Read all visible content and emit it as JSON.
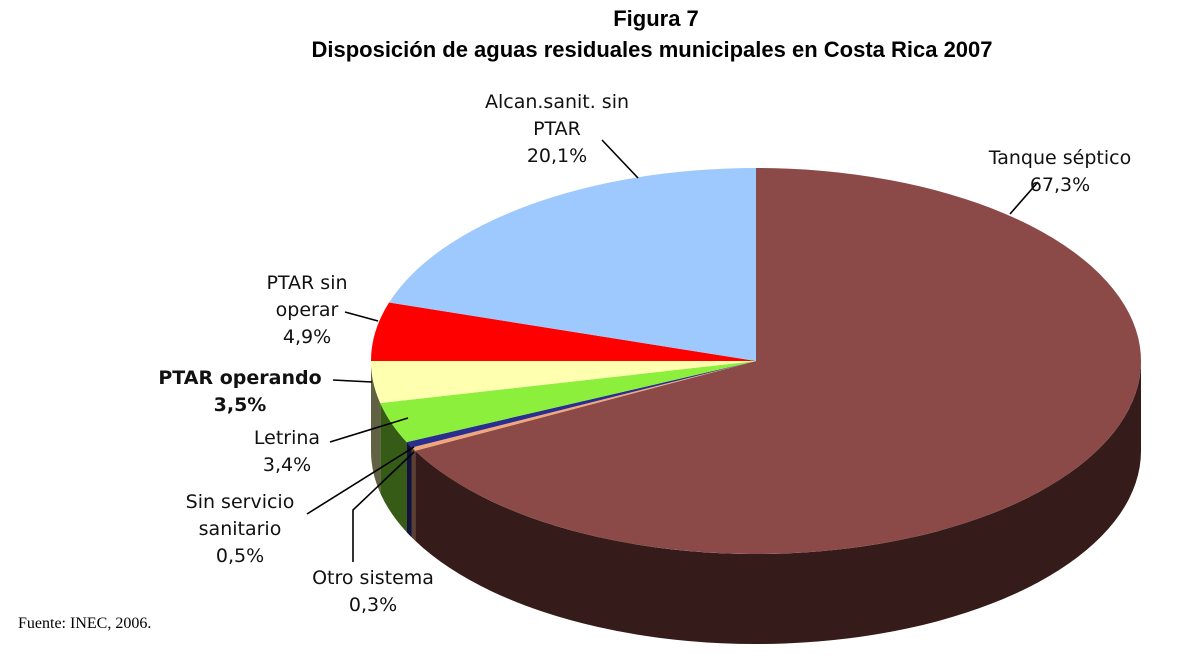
{
  "chart_data": {
    "type": "pie",
    "style": "3d",
    "title": "Figura 7",
    "subtitle": "Disposición de aguas residuales municipales en Costa Rica 2007",
    "source": "Fuente: INEC, 2006.",
    "slices": [
      {
        "label_lines": [
          "Tanque séptico"
        ],
        "value": 67.3,
        "value_label": "67,3%",
        "color": "#8B4A47",
        "bold": false
      },
      {
        "label_lines": [
          "Otro sistema"
        ],
        "value": 0.3,
        "value_label": "0,3%",
        "color": "#F2A77A",
        "bold": false
      },
      {
        "label_lines": [
          "Sin servicio",
          "sanitario"
        ],
        "value": 0.5,
        "value_label": "0,5%",
        "color": "#2A2F8F",
        "bold": false
      },
      {
        "label_lines": [
          "Letrina"
        ],
        "value": 3.4,
        "value_label": "3,4%",
        "color": "#8BEF3C",
        "bold": false
      },
      {
        "label_lines": [
          "PTAR operando"
        ],
        "value": 3.5,
        "value_label": "3,5%",
        "color": "#FFFFB0",
        "bold": true
      },
      {
        "label_lines": [
          "PTAR sin",
          "operar"
        ],
        "value": 4.9,
        "value_label": "4,9%",
        "color": "#FF0000",
        "bold": false
      },
      {
        "label_lines": [
          "Alcan.sanit. sin",
          "PTAR"
        ],
        "value": 20.1,
        "value_label": "20,1%",
        "color": "#9EC9FF",
        "bold": false
      }
    ]
  }
}
